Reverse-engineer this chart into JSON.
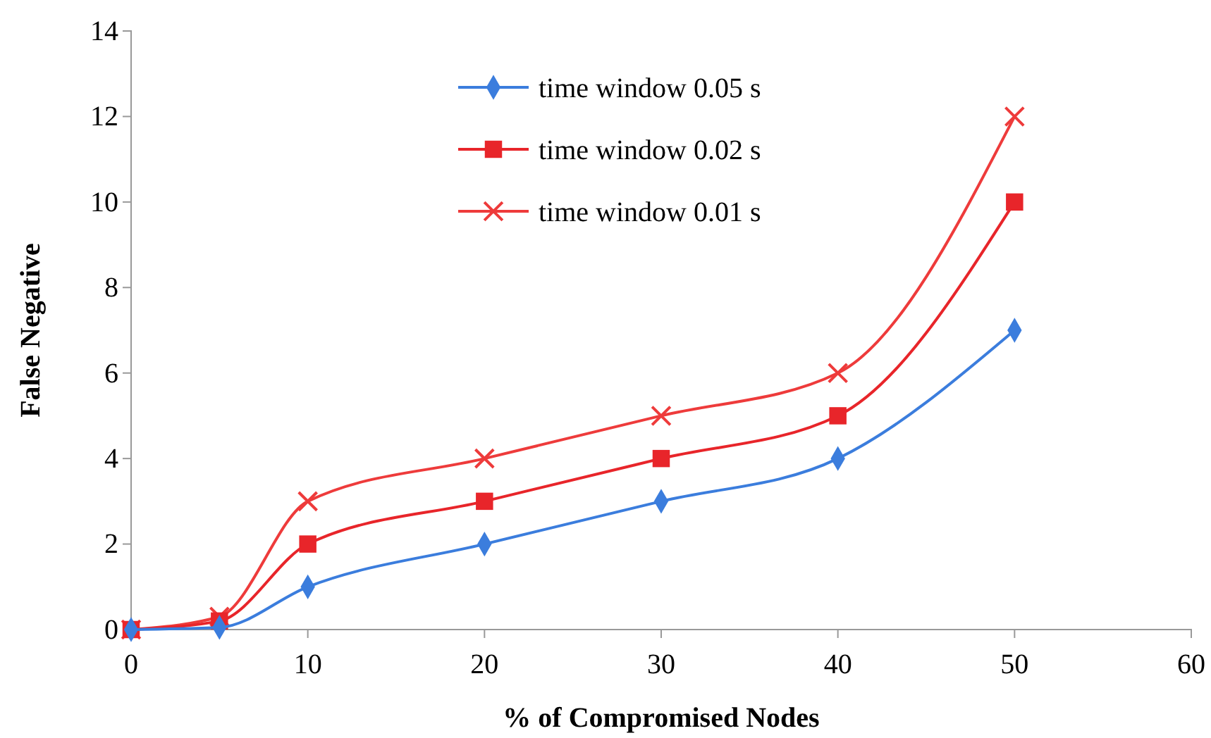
{
  "chart_data": {
    "type": "line",
    "xlabel": "% of Compromised Nodes",
    "ylabel": "False Negative",
    "x": [
      0,
      5,
      10,
      20,
      30,
      40,
      50
    ],
    "xlim": [
      0,
      60
    ],
    "xticks": [
      0,
      10,
      20,
      30,
      40,
      50,
      60
    ],
    "ylim": [
      0,
      14
    ],
    "yticks": [
      0,
      2,
      4,
      6,
      8,
      10,
      12,
      14
    ],
    "grid": false,
    "legend": "top",
    "series": [
      {
        "name": "time window 0.05 s",
        "color": "#3b7ddd",
        "marker": "diamond",
        "values": [
          0,
          0.05,
          1,
          2,
          3,
          4,
          7
        ]
      },
      {
        "name": "time window 0.02 s",
        "color": "#e8252a",
        "marker": "square",
        "values": [
          0,
          0.2,
          2,
          3,
          4,
          5,
          10
        ]
      },
      {
        "name": "time window 0.01 s",
        "color": "#ee3b3b",
        "marker": "cross",
        "values": [
          0,
          0.3,
          3,
          4,
          5,
          6,
          12
        ]
      }
    ]
  }
}
